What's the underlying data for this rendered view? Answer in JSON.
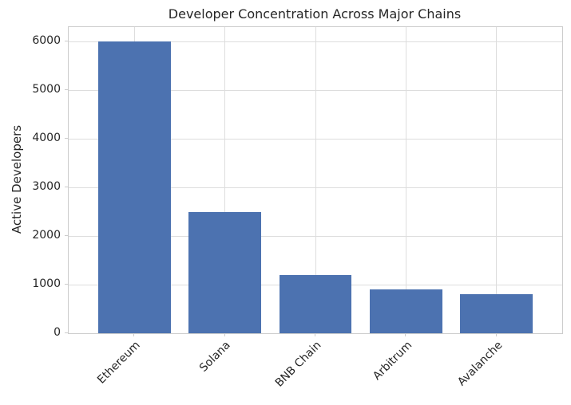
{
  "chart_data": {
    "type": "bar",
    "title": "Developer Concentration Across Major Chains",
    "xlabel": "",
    "ylabel": "Active Developers",
    "categories": [
      "Ethereum",
      "Solana",
      "BNB Chain",
      "Arbitrum",
      "Avalanche"
    ],
    "values": [
      6000,
      2500,
      1200,
      900,
      800
    ],
    "yticks": [
      0,
      1000,
      2000,
      3000,
      4000,
      5000,
      6000
    ],
    "ylim": [
      0,
      6300
    ],
    "grid": "both",
    "legend": "none",
    "bar_color": "#4c72b0",
    "grid_color": "#dddddd",
    "spine_color": "#cccccc",
    "text_color": "#262626",
    "background_color": "#ffffff"
  }
}
